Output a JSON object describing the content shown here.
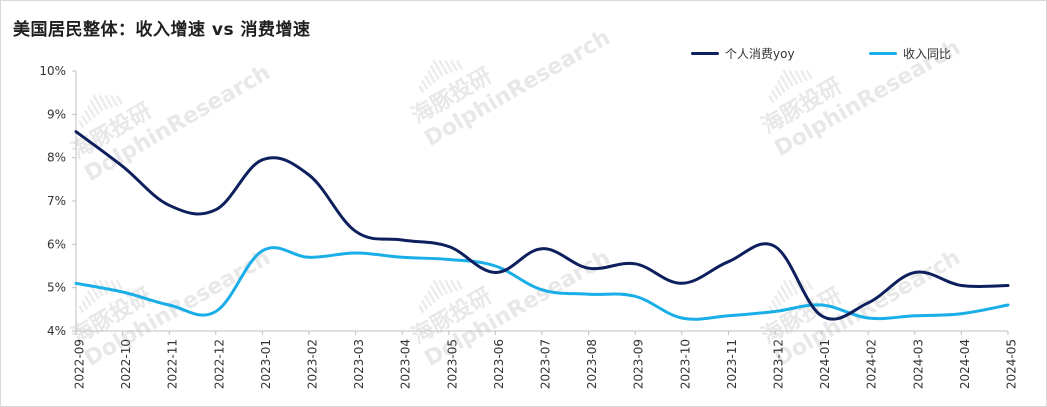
{
  "chart_data": {
    "type": "line",
    "title": "美国居民整体：收入增速 vs 消费增速",
    "categories": [
      "2022-09",
      "2022-10",
      "2022-11",
      "2022-12",
      "2023-01",
      "2023-02",
      "2023-03",
      "2023-04",
      "2023-05",
      "2023-06",
      "2023-07",
      "2023-08",
      "2023-09",
      "2023-10",
      "2023-11",
      "2023-12",
      "2024-01",
      "2024-02",
      "2024-03",
      "2024-04",
      "2024-05"
    ],
    "series": [
      {
        "name": "个人消费yoy",
        "color": "#0d1f5c",
        "values": [
          8.6,
          7.8,
          6.9,
          6.8,
          7.95,
          7.6,
          6.3,
          6.1,
          5.95,
          5.35,
          5.9,
          5.45,
          5.55,
          5.1,
          5.6,
          5.95,
          4.35,
          4.65,
          5.35,
          5.05,
          5.05
        ]
      },
      {
        "name": "收入同比",
        "color": "#19aee8",
        "values": [
          5.1,
          4.9,
          4.6,
          4.45,
          5.85,
          5.7,
          5.8,
          5.7,
          5.65,
          5.5,
          4.95,
          4.85,
          4.8,
          4.3,
          4.35,
          4.45,
          4.6,
          4.3,
          4.35,
          4.4,
          4.6
        ]
      }
    ],
    "ylim": [
      4,
      10
    ],
    "yticks": [
      "4%",
      "5%",
      "6%",
      "7%",
      "8%",
      "9%",
      "10%"
    ],
    "legend_position": "top",
    "grid": false
  },
  "watermark": {
    "cn": "海豚投研",
    "en": "DolphinResearch"
  },
  "colors": {
    "axis": "#bfbfbf",
    "text": "#333333",
    "watermark": "#e8e8e8"
  }
}
